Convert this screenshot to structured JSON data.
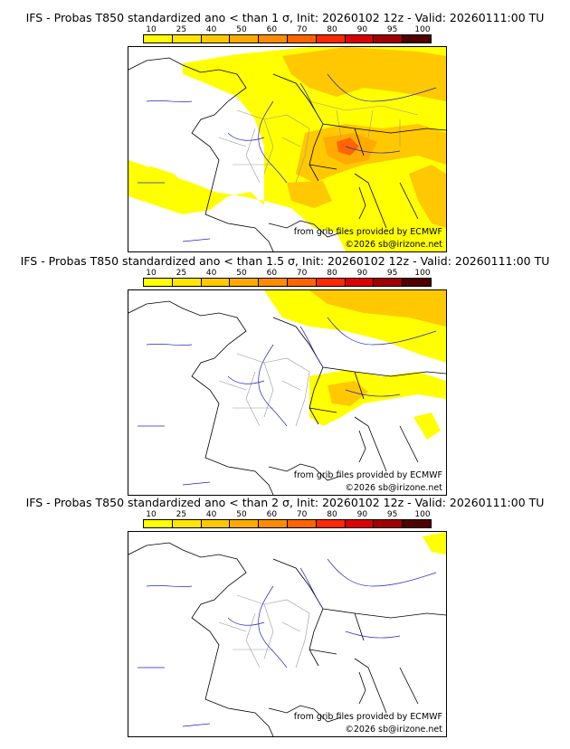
{
  "colorbar": {
    "ticks": [
      "10",
      "25",
      "40",
      "50",
      "60",
      "70",
      "80",
      "90",
      "95",
      "100"
    ],
    "colors": [
      "#ffff00",
      "#ffe600",
      "#ffc800",
      "#ffaa00",
      "#ff8c00",
      "#ff6400",
      "#ff2800",
      "#dc0000",
      "#a00000",
      "#500000"
    ]
  },
  "panels": [
    {
      "title": "IFS - Probas T850  standardized ano < than 1 σ, Init: 20260102 12z - Valid: 20260111:00 TU",
      "source": "from grib files provided by ECMWF",
      "copyright": "©2026 sb@irizone.net",
      "anomaly_threshold_sigma": 1
    },
    {
      "title": "IFS - Probas T850  standardized ano < than 1.5 σ, Init: 20260102 12z - Valid: 20260111:00 TU",
      "source": "from grib files provided by ECMWF",
      "copyright": "©2026 sb@irizone.net",
      "anomaly_threshold_sigma": 1.5
    },
    {
      "title": "IFS - Probas T850  standardized ano < than 2 σ, Init: 20260102 12z - Valid: 20260111:00 TU",
      "source": "from grib files provided by ECMWF",
      "copyright": "©2026 sb@irizone.net",
      "anomaly_threshold_sigma": 2
    }
  ]
}
